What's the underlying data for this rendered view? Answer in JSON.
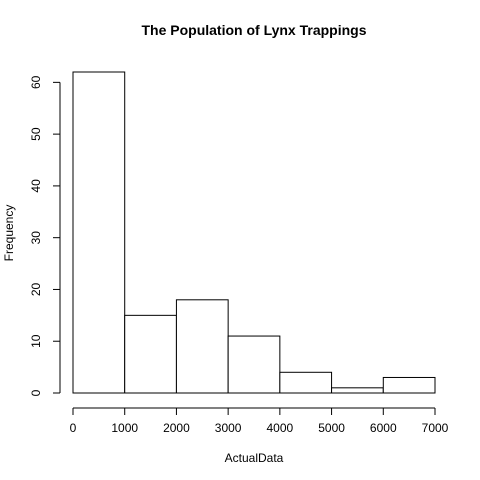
{
  "chart_data": {
    "type": "bar",
    "title": "The Population of Lynx Trappings",
    "xlabel": "ActualData",
    "ylabel": "Frequency",
    "bins": [
      {
        "x0": 0,
        "x1": 1000,
        "count": 62
      },
      {
        "x0": 1000,
        "x1": 2000,
        "count": 15
      },
      {
        "x0": 2000,
        "x1": 3000,
        "count": 18
      },
      {
        "x0": 3000,
        "x1": 4000,
        "count": 11
      },
      {
        "x0": 4000,
        "x1": 5000,
        "count": 4
      },
      {
        "x0": 5000,
        "x1": 6000,
        "count": 1
      },
      {
        "x0": 6000,
        "x1": 7000,
        "count": 3
      }
    ],
    "xlim": [
      0,
      7000
    ],
    "ylim": [
      0,
      62
    ],
    "x_ticks": [
      0,
      1000,
      2000,
      3000,
      4000,
      5000,
      6000,
      7000
    ],
    "x_tick_labels": [
      "0",
      "1000",
      "2000",
      "3000",
      "4000",
      "5000",
      "6000",
      "7000"
    ],
    "y_ticks": [
      0,
      10,
      20,
      30,
      40,
      50,
      60
    ],
    "y_tick_labels": [
      "0",
      "10",
      "20",
      "30",
      "40",
      "50",
      "60"
    ],
    "grid": false,
    "legend": "none"
  }
}
